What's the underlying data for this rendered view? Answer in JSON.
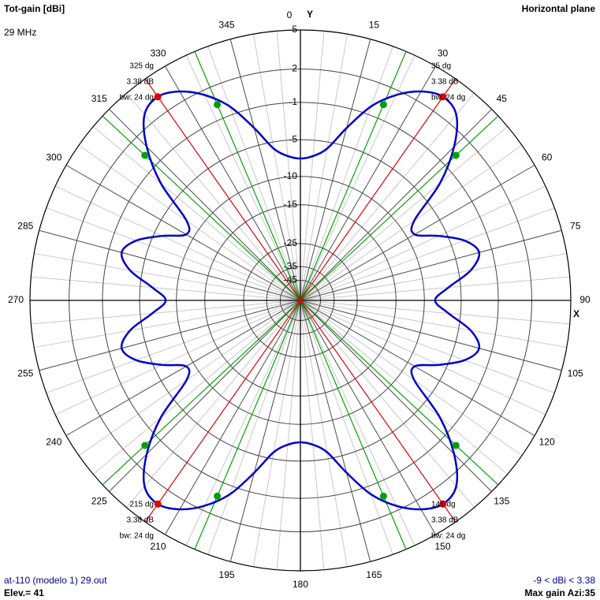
{
  "chart_data": {
    "type": "polar",
    "title": "Tot-gain [dBi]",
    "subtitle": "Horizontal plane",
    "frequency": "29 MHz",
    "y_axis_label": "Y",
    "x_axis_label": "X",
    "file_label": "at-110 (modelo 1) 29.out",
    "elevation_label": "Elev.= 41",
    "range_label": "-9 < dBi < 3.38",
    "max_gain_label": "Max gain Azi:35",
    "angle_ticks": [
      0,
      15,
      30,
      45,
      60,
      75,
      90,
      105,
      120,
      135,
      150,
      165,
      180,
      195,
      210,
      225,
      240,
      255,
      270,
      285,
      300,
      315,
      330,
      345
    ],
    "rticks": [
      5,
      2,
      -1,
      -5,
      -10,
      -15,
      -25,
      -35,
      -45
    ],
    "series": [
      {
        "name": "Tot-gain",
        "color": "#0000c8",
        "x": [
          0,
          5,
          10,
          15,
          20,
          25,
          30,
          35,
          40,
          45,
          50,
          55,
          60,
          65,
          70,
          75,
          80,
          85,
          90,
          95,
          100,
          105,
          110,
          115,
          120,
          125,
          130,
          135,
          140,
          145,
          150,
          155,
          160,
          165,
          170,
          175,
          180,
          185,
          190,
          195,
          200,
          205,
          210,
          215,
          220,
          225,
          230,
          235,
          240,
          245,
          250,
          255,
          260,
          265,
          270,
          275,
          280,
          285,
          290,
          295,
          300,
          305,
          310,
          315,
          320,
          325,
          330,
          335,
          340,
          345,
          350,
          355
        ],
        "values": [
          -7.4,
          -7.0,
          -5.8,
          -3.0,
          -0.2,
          1.6,
          2.8,
          3.38,
          2.9,
          0.8,
          -2.6,
          -7.8,
          -8.8,
          -6.0,
          -3.4,
          -2.3,
          -3.6,
          -6.5,
          -8.4,
          -6.5,
          -3.6,
          -2.3,
          -3.4,
          -6.0,
          -8.8,
          -7.8,
          -2.6,
          0.8,
          2.9,
          3.38,
          2.8,
          1.6,
          -0.2,
          -3.0,
          -5.8,
          -7.0,
          -7.4,
          -7.0,
          -5.8,
          -3.0,
          -0.2,
          1.6,
          2.8,
          3.38,
          2.9,
          0.8,
          -2.6,
          -7.8,
          -8.8,
          -6.0,
          -3.4,
          -2.3,
          -3.6,
          -6.5,
          -8.4,
          -6.5,
          -3.6,
          -2.3,
          -3.4,
          -6.0,
          -8.8,
          -7.8,
          -2.6,
          0.8,
          2.9,
          3.38,
          2.8,
          1.6,
          -0.2,
          -3.0,
          -5.8,
          -7.0
        ]
      }
    ],
    "peaks": {
      "color": "#e00000",
      "x": [
        35,
        145,
        215,
        325
      ],
      "values": [
        3.38,
        3.38,
        3.38,
        3.38
      ],
      "labels": [
        [
          "35 dg",
          "3.38 dB",
          "bw: 24 dg"
        ],
        [
          "145 dg",
          "3.38 dB",
          "bw: 24 dg"
        ],
        [
          "215 dg",
          "3.38 dB",
          "bw: 24 dg"
        ],
        [
          "325 dg",
          "3.38 dB",
          "bw: 24 dg"
        ]
      ]
    },
    "beamwidth_points": {
      "color": "#00a000",
      "x": [
        23,
        47,
        133,
        157,
        203,
        227,
        313,
        337
      ],
      "values": [
        0.38,
        0.38,
        0.38,
        0.38,
        0.38,
        0.38,
        0.38,
        0.38
      ]
    }
  }
}
